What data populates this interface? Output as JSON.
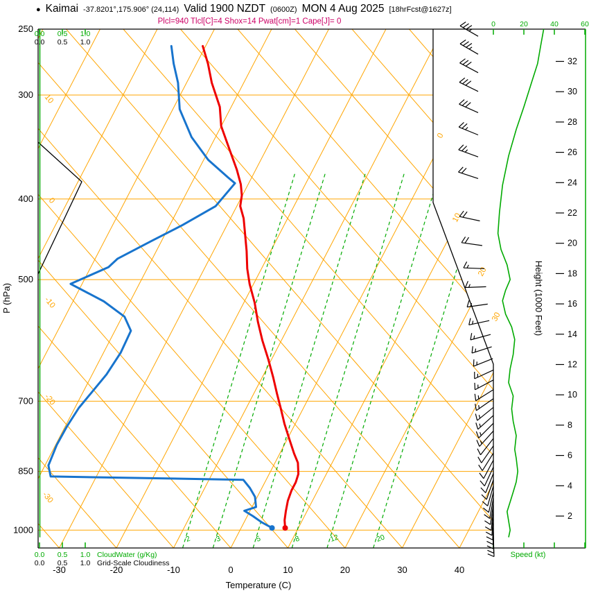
{
  "header": {
    "bullet": "●",
    "station": "Kaimai",
    "coords": "-37.8201°,175.906° (24,114)",
    "valid": "Valid 1900 NZDT",
    "valid_z": "(0600Z)",
    "date": "MON 4 Aug 2025",
    "fcst_tag": "[18hrFcst@1627z]",
    "params": "Plcl=940 Tlcl[C]=4 Shox=14 Pwat[cm]=1 Cape[J]= 0"
  },
  "axis_titles": {
    "pressure": "P (hPa)",
    "temperature": "Temperature (C)",
    "height": "Height (1000 Feet)",
    "speed": "Speed (kt)",
    "cloudwater": "CloudWater (g/Kg)",
    "cloudiness": "Grid-Scale Cloudiness"
  },
  "chart_data": {
    "type": "line",
    "title": "Skew-T log-P forecast sounding, Kaimai",
    "pressure_ticks": [
      250,
      300,
      400,
      500,
      700,
      850,
      1000
    ],
    "temp_ticks": [
      -30,
      -20,
      -10,
      0,
      10,
      20,
      30,
      40
    ],
    "height_ticks_kft": [
      2,
      4,
      6,
      8,
      10,
      12,
      14,
      16,
      18,
      20,
      22,
      24,
      26,
      28,
      30,
      32
    ],
    "mixing_ratio_gkg": [
      2,
      3,
      5,
      8,
      12,
      20
    ],
    "cloud_scale": [
      "0.0",
      "0.5",
      "1.0"
    ],
    "speed_scale": [
      "0",
      "20",
      "40",
      "60"
    ],
    "adiabat_labels_left": [
      "10",
      "0",
      "-10",
      "-20",
      "-30"
    ],
    "isotherm_labels_right": [
      "0",
      "10",
      "20",
      "30"
    ],
    "series": [
      {
        "name": "Temperature",
        "units": "C vs hPa",
        "color": "#ee0000",
        "points": [
          [
            262,
            -50.5
          ],
          [
            275,
            -48
          ],
          [
            290,
            -45.6
          ],
          [
            310,
            -42
          ],
          [
            327,
            -40
          ],
          [
            349,
            -36.4
          ],
          [
            369,
            -33.3
          ],
          [
            384,
            -31.3
          ],
          [
            396,
            -30.1
          ],
          [
            408,
            -29.4
          ],
          [
            422,
            -27.7
          ],
          [
            462,
            -24.2
          ],
          [
            485,
            -22.5
          ],
          [
            506,
            -20.7
          ],
          [
            533,
            -18.1
          ],
          [
            562,
            -15.8
          ],
          [
            592,
            -13.3
          ],
          [
            623,
            -10.6
          ],
          [
            655,
            -8.1
          ],
          [
            686,
            -5.9
          ],
          [
            713,
            -4.0
          ],
          [
            745,
            -1.9
          ],
          [
            778,
            0.4
          ],
          [
            809,
            2.5
          ],
          [
            830,
            4.0
          ],
          [
            856,
            5.1
          ],
          [
            876,
            5.4
          ],
          [
            896,
            5.4
          ],
          [
            922,
            5.7
          ],
          [
            949,
            6.3
          ],
          [
            973,
            6.9
          ],
          [
            994,
            7.7
          ]
        ]
      },
      {
        "name": "Dewpoint",
        "units": "C vs hPa",
        "color": "#1874cd",
        "points": [
          [
            262,
            -56
          ],
          [
            275,
            -54
          ],
          [
            290,
            -51.5
          ],
          [
            312,
            -48.8
          ],
          [
            337,
            -44.2
          ],
          [
            359,
            -39.2
          ],
          [
            377,
            -34.1
          ],
          [
            383,
            -32.4
          ],
          [
            408,
            -33.7
          ],
          [
            430,
            -37.8
          ],
          [
            449,
            -41.7
          ],
          [
            472,
            -46.1
          ],
          [
            483,
            -46.9
          ],
          [
            506,
            -52
          ],
          [
            531,
            -44.6
          ],
          [
            554,
            -39.6
          ],
          [
            576,
            -37.2
          ],
          [
            612,
            -37
          ],
          [
            650,
            -37.5
          ],
          [
            684,
            -38.5
          ],
          [
            713,
            -39.3
          ],
          [
            750,
            -39.7
          ],
          [
            790,
            -39.8
          ],
          [
            836,
            -39.4
          ],
          [
            862,
            -38
          ],
          [
            870,
            -4
          ],
          [
            890,
            -2.1
          ],
          [
            912,
            -0.4
          ],
          [
            938,
            0.7
          ],
          [
            948,
            -1
          ],
          [
            962,
            1
          ],
          [
            978,
            3
          ],
          [
            994,
            5.4
          ]
        ]
      }
    ],
    "cloud_water_profile_gkg": [
      [
        250,
        0
      ],
      [
        1020,
        0
      ]
    ],
    "wind_speed_kt": [
      [
        250,
        33
      ],
      [
        262,
        31
      ],
      [
        275,
        29
      ],
      [
        290,
        25
      ],
      [
        310,
        20
      ],
      [
        330,
        15
      ],
      [
        355,
        10
      ],
      [
        385,
        6
      ],
      [
        415,
        4
      ],
      [
        440,
        3
      ],
      [
        460,
        5
      ],
      [
        480,
        9
      ],
      [
        500,
        11
      ],
      [
        515,
        8
      ],
      [
        530,
        6
      ],
      [
        550,
        8
      ],
      [
        570,
        12
      ],
      [
        590,
        14
      ],
      [
        615,
        13
      ],
      [
        640,
        11
      ],
      [
        665,
        10
      ],
      [
        690,
        13
      ],
      [
        715,
        12
      ],
      [
        740,
        13
      ],
      [
        770,
        15
      ],
      [
        800,
        14
      ],
      [
        820,
        15
      ],
      [
        850,
        16
      ],
      [
        875,
        15
      ],
      [
        900,
        13
      ],
      [
        925,
        11
      ],
      [
        950,
        9
      ],
      [
        975,
        10
      ],
      [
        1000,
        11
      ],
      [
        1020,
        10
      ]
    ],
    "wind_barbs_p_dir_kt": [
      [
        255,
        300,
        35
      ],
      [
        268,
        300,
        35
      ],
      [
        282,
        298,
        30
      ],
      [
        297,
        296,
        30
      ],
      [
        315,
        294,
        30
      ],
      [
        335,
        292,
        25
      ],
      [
        356,
        290,
        25
      ],
      [
        378,
        288,
        20
      ],
      [
        425,
        282,
        20
      ],
      [
        455,
        278,
        20
      ],
      [
        485,
        272,
        15
      ],
      [
        510,
        268,
        15
      ],
      [
        535,
        262,
        15
      ],
      [
        560,
        258,
        15
      ],
      [
        582,
        255,
        15
      ],
      [
        602,
        252,
        15
      ],
      [
        622,
        248,
        15
      ],
      [
        642,
        245,
        15
      ],
      [
        660,
        242,
        15
      ],
      [
        678,
        238,
        15
      ],
      [
        695,
        235,
        15
      ],
      [
        712,
        231,
        15
      ],
      [
        728,
        228,
        15
      ],
      [
        744,
        225,
        15
      ],
      [
        760,
        222,
        15
      ],
      [
        776,
        218,
        10
      ],
      [
        792,
        215,
        10
      ],
      [
        808,
        212,
        10
      ],
      [
        824,
        208,
        10
      ],
      [
        840,
        205,
        10
      ],
      [
        855,
        202,
        10
      ],
      [
        870,
        199,
        10
      ],
      [
        885,
        196,
        10
      ],
      [
        900,
        193,
        10
      ],
      [
        915,
        190,
        10
      ],
      [
        930,
        188,
        10
      ],
      [
        945,
        186,
        10
      ],
      [
        958,
        184,
        10
      ],
      [
        970,
        182,
        10
      ],
      [
        982,
        181,
        10
      ],
      [
        994,
        180,
        10
      ],
      [
        1006,
        179,
        10
      ],
      [
        1016,
        178,
        10
      ]
    ],
    "colors": {
      "grid": "#ffa500",
      "aux": "#00aa00",
      "temperature": "#ee0000",
      "dewpoint": "#1874cd",
      "params_text": "#cc0066"
    }
  }
}
